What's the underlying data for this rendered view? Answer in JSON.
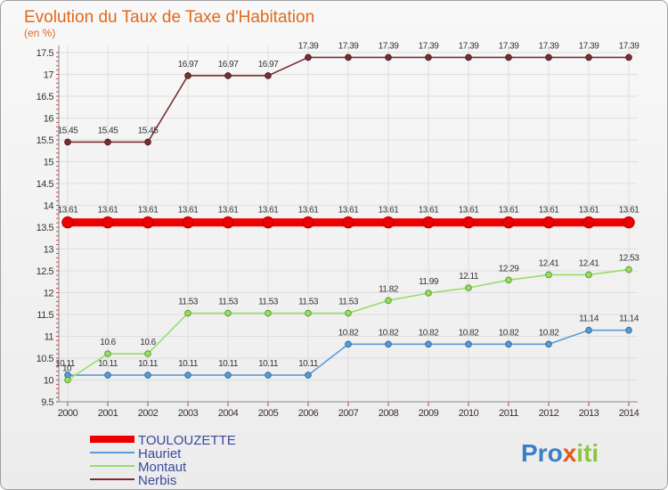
{
  "chart_data": {
    "type": "line",
    "title": "Evolution du Taux de Taxe d'Habitation",
    "ylabel": "(en %)",
    "ylim": [
      9.5,
      17.5
    ],
    "ytick_step": 0.5,
    "yticks": [
      "9.5",
      "10",
      "10.5",
      "11",
      "11.5",
      "12",
      "12.5",
      "13",
      "13.5",
      "14",
      "14.5",
      "15",
      "15.5",
      "16",
      "16.5",
      "17",
      "17.5"
    ],
    "x": [
      "2000",
      "2001",
      "2002",
      "2003",
      "2004",
      "2005",
      "2006",
      "2007",
      "2008",
      "2009",
      "2010",
      "2011",
      "2012",
      "2013",
      "2014"
    ],
    "series": [
      {
        "name": "TOULOUZETTE",
        "color": "#ee0000",
        "values": [
          13.61,
          13.61,
          13.61,
          13.61,
          13.61,
          13.61,
          13.61,
          13.61,
          13.61,
          13.61,
          13.61,
          13.61,
          13.61,
          13.61,
          13.61
        ],
        "labels": [
          "13.61",
          "13.61",
          "13.61",
          "13.61",
          "13.61",
          "13.61",
          "13.61",
          "13.61",
          "13.61",
          "13.61",
          "13.61",
          "13.61",
          "13.61",
          "13.61",
          "13.61"
        ]
      },
      {
        "name": "Hauriet",
        "color": "#5b9bd5",
        "values": [
          10.11,
          10.11,
          10.11,
          10.11,
          10.11,
          10.11,
          10.11,
          10.82,
          10.82,
          10.82,
          10.82,
          10.82,
          10.82,
          11.14,
          11.14
        ],
        "labels": [
          "10.11",
          "10.11",
          "10.11",
          "10.11",
          "10.11",
          "10.11",
          "10.11",
          "10.82",
          "10.82",
          "10.82",
          "10.82",
          "10.82",
          "10.82",
          "11.14",
          "11.14"
        ]
      },
      {
        "name": "Montaut",
        "color": "#99dd66",
        "values": [
          10,
          10.6,
          10.6,
          11.53,
          11.53,
          11.53,
          11.53,
          11.53,
          11.82,
          11.99,
          12.11,
          12.29,
          12.41,
          12.41,
          12.53
        ],
        "labels": [
          "10",
          "10.6",
          "10.6",
          "11.53",
          "11.53",
          "11.53",
          "11.53",
          "11.53",
          "11.82",
          "11.99",
          "12.11",
          "12.29",
          "12.41",
          "12.41",
          "12.53"
        ]
      },
      {
        "name": "Nerbis",
        "color": "#7a2e33",
        "values": [
          15.45,
          15.45,
          15.45,
          16.97,
          16.97,
          16.97,
          17.39,
          17.39,
          17.39,
          17.39,
          17.39,
          17.39,
          17.39,
          17.39,
          17.39
        ],
        "labels": [
          "15.45",
          "15.45",
          "15.45",
          "16.97",
          "16.97",
          "16.97",
          "17.39",
          "17.39",
          "17.39",
          "17.39",
          "17.39",
          "17.39",
          "17.39",
          "17.39",
          "17.39"
        ]
      }
    ]
  },
  "logo": {
    "p1": "Pro",
    "x": "x",
    "p2": "iti"
  }
}
